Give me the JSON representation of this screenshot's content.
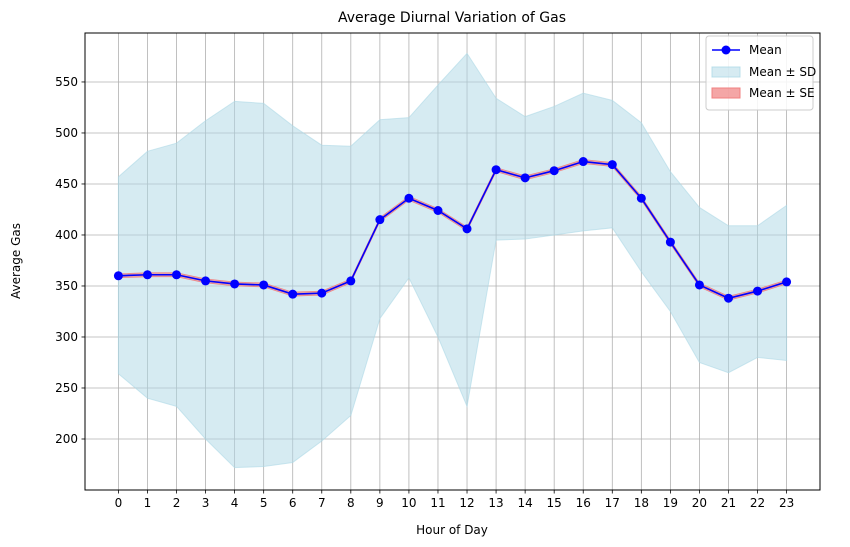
{
  "chart_data": {
    "type": "line",
    "title": "Average Diurnal Variation of Gas",
    "xlabel": "Hour of Day",
    "ylabel": "Average Gas",
    "x": [
      0,
      1,
      2,
      3,
      4,
      5,
      6,
      7,
      8,
      9,
      10,
      11,
      12,
      13,
      14,
      15,
      16,
      17,
      18,
      19,
      20,
      21,
      22,
      23
    ],
    "x_tick_labels": [
      "0",
      "1",
      "2",
      "3",
      "4",
      "5",
      "6",
      "7",
      "8",
      "9",
      "10",
      "11",
      "12",
      "13",
      "14",
      "15",
      "16",
      "17",
      "18",
      "19",
      "20",
      "21",
      "22",
      "23"
    ],
    "xlim": [
      -1.15,
      24.15
    ],
    "ylim": [
      150,
      598
    ],
    "y_ticks": [
      200,
      250,
      300,
      350,
      400,
      450,
      500,
      550
    ],
    "grid": true,
    "legend_position": "top-right",
    "series": [
      {
        "name": "Mean",
        "kind": "line-marker",
        "color": "#0000ff",
        "values": [
          360,
          361,
          361,
          355,
          352,
          351,
          342,
          343,
          355,
          415,
          436,
          424,
          406,
          464,
          456,
          463,
          472,
          469,
          436,
          393,
          351,
          338,
          345,
          354
        ]
      },
      {
        "name": "Mean ± SD",
        "kind": "band",
        "color": "#add8e6",
        "lower": [
          264,
          240,
          232,
          200,
          172,
          173,
          177,
          198,
          223,
          318,
          358,
          300,
          232,
          395,
          396,
          400,
          404,
          407,
          364,
          325,
          275,
          265,
          280,
          277
        ],
        "upper": [
          457,
          482,
          490,
          512,
          531,
          529,
          507,
          488,
          487,
          513,
          515,
          547,
          578,
          534,
          516,
          526,
          539,
          532,
          510,
          462,
          427,
          409,
          409,
          429
        ]
      },
      {
        "name": "Mean ± SE",
        "kind": "band",
        "color": "#f08080",
        "lower": [
          358,
          359,
          359,
          353,
          350,
          349,
          340,
          341,
          353,
          413,
          434,
          422,
          404,
          462,
          454,
          461,
          470,
          467,
          434,
          391,
          349,
          336,
          343,
          352
        ],
        "upper": [
          362,
          363,
          363,
          357,
          354,
          353,
          344,
          345,
          357,
          417,
          438,
          426,
          408,
          466,
          458,
          465,
          474,
          471,
          438,
          395,
          353,
          340,
          347,
          356
        ]
      }
    ]
  }
}
